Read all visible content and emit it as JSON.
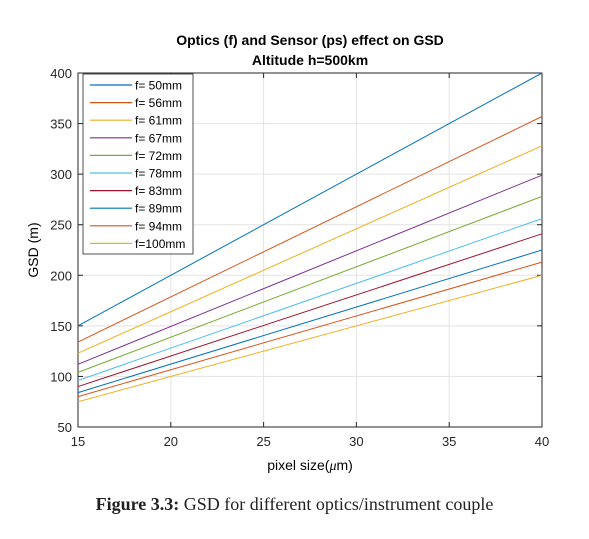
{
  "chart_data": {
    "type": "line",
    "title": "Optics (f) and Sensor (ps) effect on GSD",
    "subtitle": "Altitude h=500km",
    "xlabel_prefix": "pixel size(",
    "xlabel_mu": "μ",
    "xlabel_suffix": "m)",
    "ylabel": "GSD (m)",
    "xlim": [
      15,
      40
    ],
    "ylim": [
      50,
      400
    ],
    "xticks": [
      "15",
      "20",
      "25",
      "30",
      "35",
      "40"
    ],
    "yticks": [
      "50",
      "100",
      "150",
      "200",
      "250",
      "300",
      "350",
      "400"
    ],
    "grid": true,
    "legend_position": "top-left",
    "x": [
      15,
      40
    ],
    "series": [
      {
        "name": "f= 50mm",
        "values": [
          150,
          400
        ],
        "color": "#0072BD"
      },
      {
        "name": "f= 56mm",
        "values": [
          134,
          357
        ],
        "color": "#D95319"
      },
      {
        "name": "f= 61mm",
        "values": [
          123,
          328
        ],
        "color": "#EDB120"
      },
      {
        "name": "f= 67mm",
        "values": [
          112,
          299
        ],
        "color": "#7E2F8E"
      },
      {
        "name": "f= 72mm",
        "values": [
          104,
          278
        ],
        "color": "#77AC30"
      },
      {
        "name": "f= 78mm",
        "values": [
          96,
          256
        ],
        "color": "#4DBEEE"
      },
      {
        "name": "f= 83mm",
        "values": [
          90,
          241
        ],
        "color": "#A2142F"
      },
      {
        "name": "f= 89mm",
        "values": [
          84,
          225
        ],
        "color": "#0072BD"
      },
      {
        "name": "f= 94mm",
        "values": [
          80,
          213
        ],
        "color": "#D95319"
      },
      {
        "name": "f=100mm",
        "values": [
          75,
          200
        ],
        "color": "#EDB120"
      }
    ]
  },
  "caption": {
    "label": "Figure 3.3:",
    "text": "GSD for different optics/instrument couple"
  }
}
